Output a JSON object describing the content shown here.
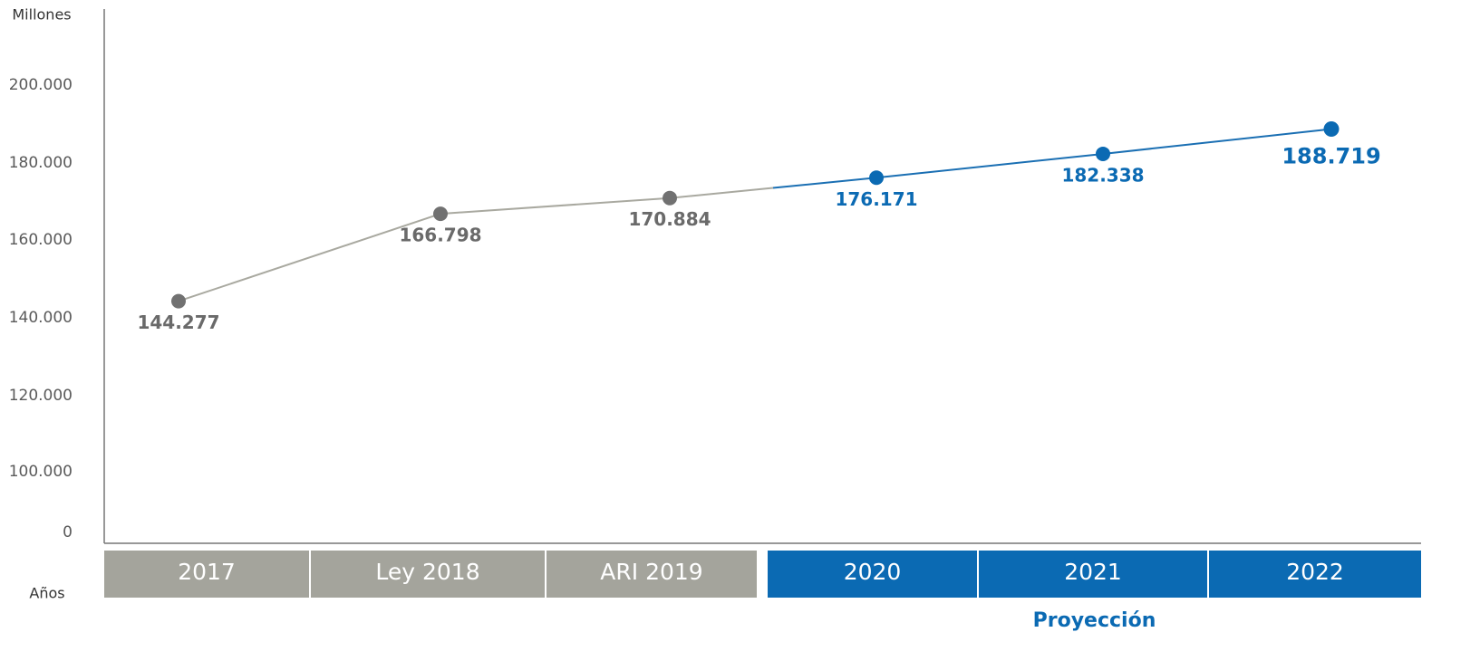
{
  "chart_data": {
    "type": "line",
    "y_axis_label": "Millones",
    "x_axis_label": "Años",
    "categories": [
      "2017",
      "Ley 2018",
      "ARI 2019",
      "2020",
      "2021",
      "2022"
    ],
    "values": [
      144277,
      166798,
      170884,
      176171,
      182338,
      188719
    ],
    "value_labels": [
      "144.277",
      "166.798",
      "170.884",
      "176.171",
      "182.338",
      "188.719"
    ],
    "colors": [
      "#717171",
      "#717171",
      "#717171",
      "#0b6ab3",
      "#0b6ab3",
      "#0b6ab3"
    ],
    "line_colors": [
      "#a9a9a0",
      "#a9a9a0",
      "#a9a9a0",
      "#1a6fb3",
      "#1a6fb3",
      "#1a6fb3"
    ],
    "band_colors": [
      "#a4a49c",
      "#a4a49c",
      "#a4a49c",
      "#0b6ab3",
      "#0b6ab3",
      "#0b6ab3"
    ],
    "label_colors": [
      "#6a6a6a",
      "#6a6a6a",
      "#6a6a6a",
      "#0b6ab3",
      "#0b6ab3",
      "#0b6ab3"
    ],
    "annotation": "Proyección",
    "ylim": [
      0,
      200000
    ],
    "yticks": [
      0,
      {
        "value": 100000,
        "label": "100.000"
      },
      {
        "value": 120000,
        "label": "120.000"
      },
      {
        "value": 140000,
        "label": "140.000"
      },
      {
        "value": 160000,
        "label": "160.000"
      },
      {
        "value": 180000,
        "label": "180.000"
      },
      {
        "value": 200000,
        "label": "200.000"
      }
    ]
  }
}
